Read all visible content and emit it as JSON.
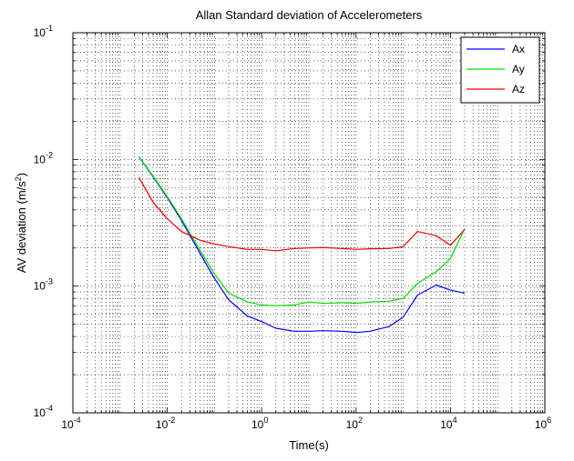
{
  "chart_data": {
    "type": "line",
    "title": "Allan Standard deviation of Accelerometers",
    "xlabel": "Time(s)",
    "ylabel_main": "AV deviation (m/s",
    "ylabel_sup": "2",
    "ylabel_end": ")",
    "xscale": "log",
    "yscale": "log",
    "xlim": [
      0.0001,
      1000000
    ],
    "ylim": [
      0.0001,
      0.1
    ],
    "grid": true,
    "legend_position": "top-right",
    "x_ticks": [
      {
        "base": "10",
        "exp": "-4"
      },
      {
        "base": "10",
        "exp": "-2"
      },
      {
        "base": "10",
        "exp": "0"
      },
      {
        "base": "10",
        "exp": "2"
      },
      {
        "base": "10",
        "exp": "4"
      },
      {
        "base": "10",
        "exp": "6"
      }
    ],
    "y_ticks": [
      {
        "base": "10",
        "exp": "-4"
      },
      {
        "base": "10",
        "exp": "-3"
      },
      {
        "base": "10",
        "exp": "-2"
      },
      {
        "base": "10",
        "exp": "-1"
      }
    ],
    "x": [
      0.0025,
      0.005,
      0.01,
      0.02,
      0.05,
      0.1,
      0.2,
      0.5,
      1,
      2,
      5,
      10,
      20,
      50,
      100,
      200,
      500,
      1000,
      2000,
      5000,
      10000,
      20000
    ],
    "series": [
      {
        "name": "Ax",
        "color": "#0000ff",
        "values": [
          0.0105,
          0.0073,
          0.005,
          0.0033,
          0.0018,
          0.00115,
          0.00078,
          0.00058,
          0.000525,
          0.000465,
          0.00044,
          0.00044,
          0.000445,
          0.00044,
          0.00043,
          0.00044,
          0.00048,
          0.00057,
          0.00085,
          0.00102,
          0.00093,
          0.00088
        ]
      },
      {
        "name": "Ay",
        "color": "#00dd00",
        "values": [
          0.0105,
          0.0074,
          0.0051,
          0.0034,
          0.0019,
          0.00125,
          0.00088,
          0.00075,
          0.00071,
          0.0007,
          0.00071,
          0.00075,
          0.00073,
          0.00074,
          0.00073,
          0.00075,
          0.00076,
          0.0008,
          0.00105,
          0.0013,
          0.00165,
          0.00285
        ]
      },
      {
        "name": "Az",
        "color": "#ee0000",
        "values": [
          0.0072,
          0.0046,
          0.0034,
          0.0027,
          0.0023,
          0.00215,
          0.00205,
          0.00195,
          0.00195,
          0.0019,
          0.00198,
          0.002,
          0.00202,
          0.00198,
          0.00195,
          0.00197,
          0.00198,
          0.00205,
          0.0027,
          0.0025,
          0.0021,
          0.0028
        ]
      }
    ]
  }
}
